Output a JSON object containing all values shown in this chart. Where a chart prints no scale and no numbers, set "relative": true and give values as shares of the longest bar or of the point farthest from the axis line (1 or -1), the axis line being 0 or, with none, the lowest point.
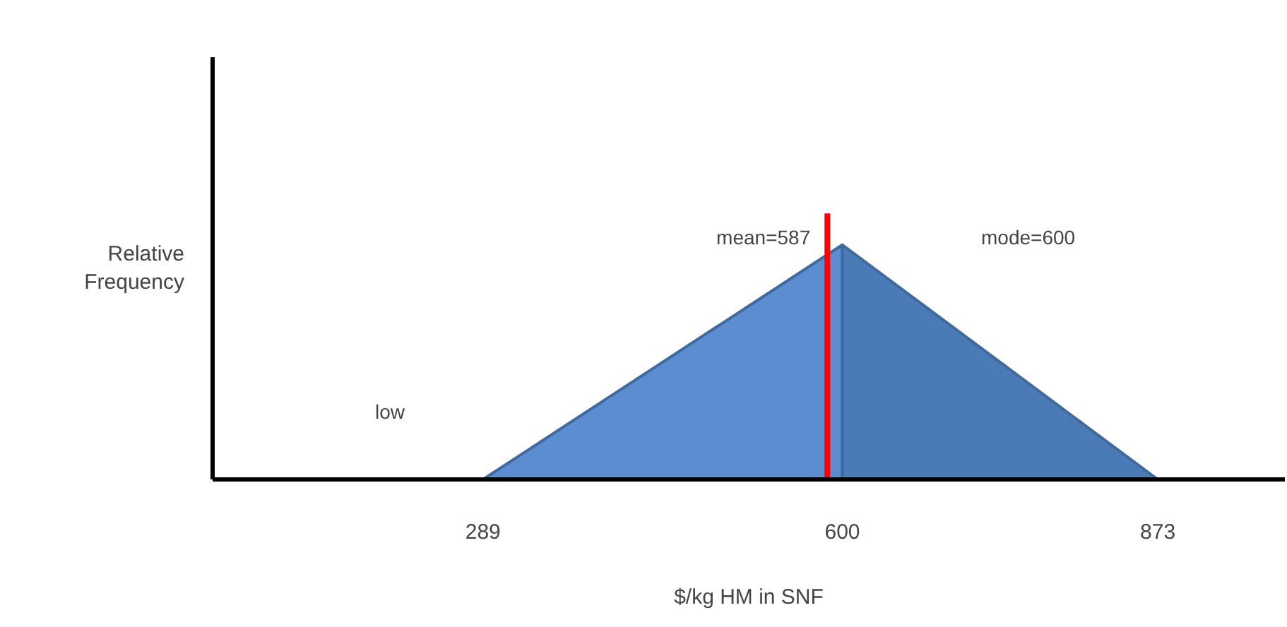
{
  "chart_data": {
    "type": "area",
    "relative": true,
    "xlabel": "$/kg HM in SNF",
    "ylabel": "Relative Frequency",
    "xlim": [
      55,
      983
    ],
    "xticks": [
      289,
      600,
      873
    ],
    "series": [
      {
        "color": "#5b8dd0",
        "x": [
          289,
          600
        ],
        "values": [
          0,
          1
        ]
      },
      {
        "color": "#4a7bb7",
        "x": [
          600,
          873
        ],
        "values": [
          1,
          0
        ]
      }
    ],
    "ref_lines": [
      {
        "axis": "x",
        "value": 587,
        "label": "mean=587",
        "color": "#ff0000"
      }
    ],
    "annotations": [
      "mode=600",
      "low"
    ],
    "grid": false
  }
}
